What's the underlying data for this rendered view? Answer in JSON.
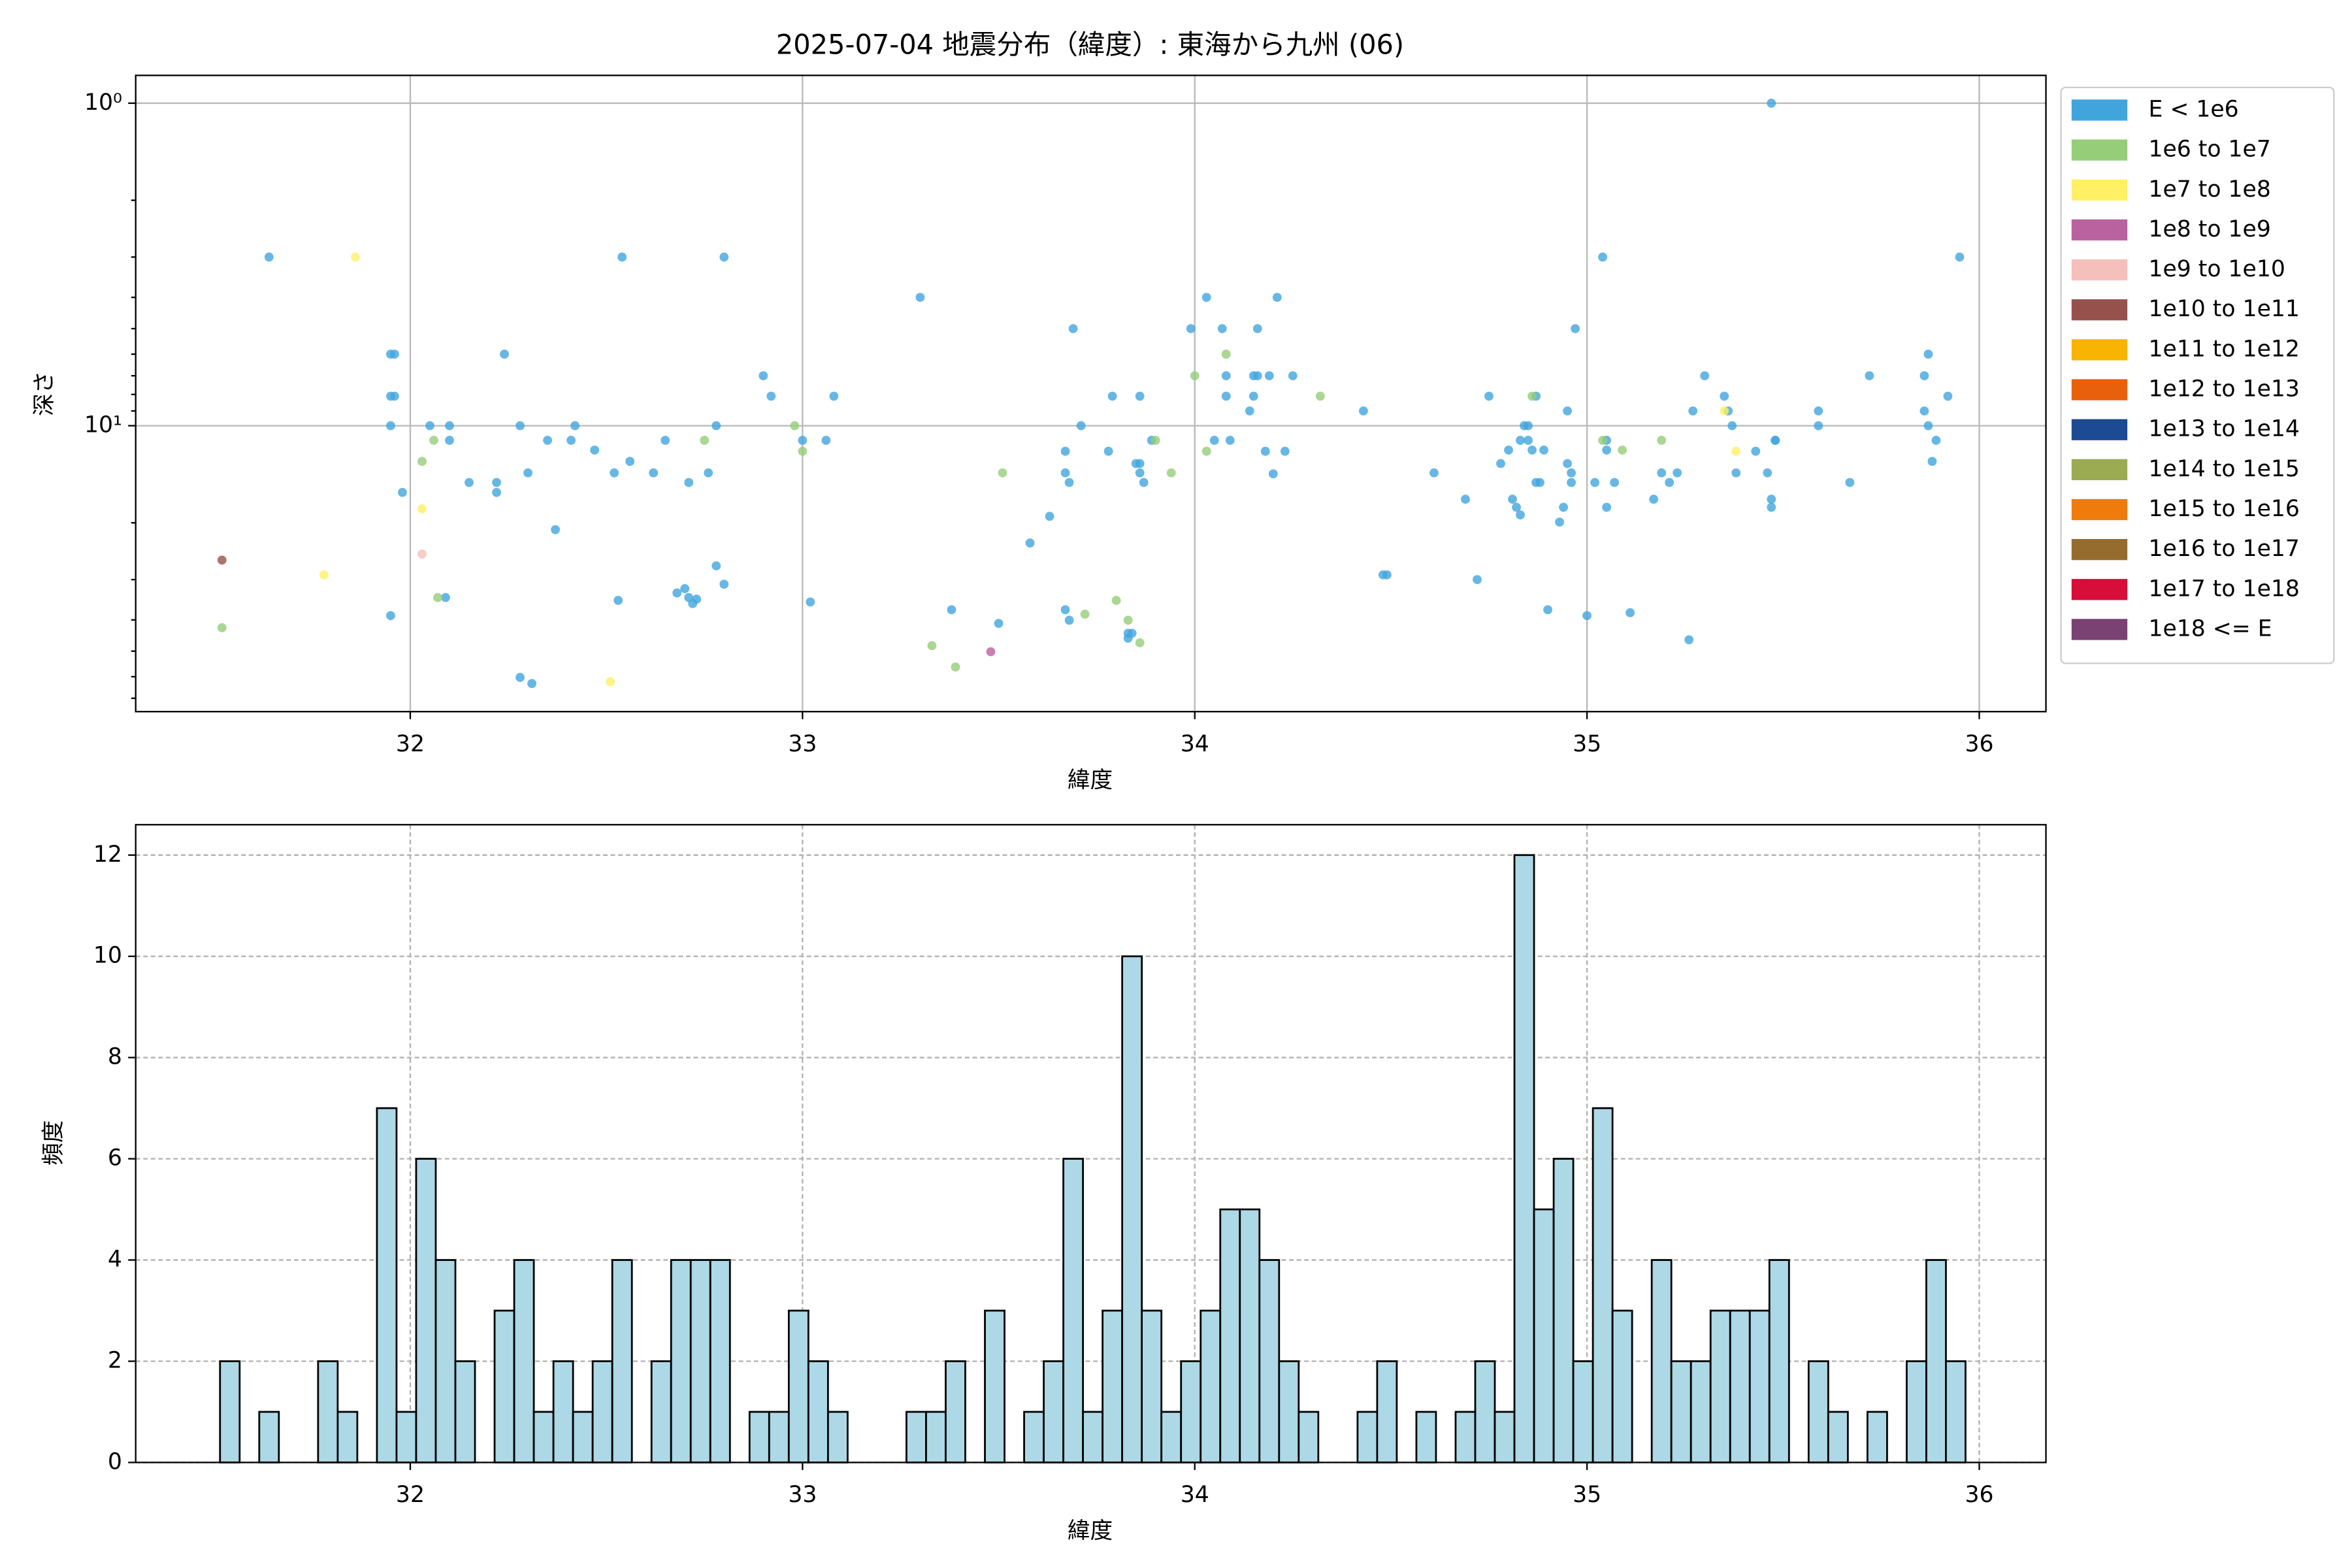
{
  "chart_data": [
    {
      "type": "scatter",
      "title": "2025-07-04 地震分布（緯度）: 東海から九州 (06)",
      "xlabel": "緯度",
      "ylabel": "深さ",
      "xlim": [
        31.3,
        36.17
      ],
      "xticks": [
        32,
        33,
        34,
        35,
        36
      ],
      "yscale": "log",
      "y_inverted": true,
      "ylim": [
        0.82,
        77
      ],
      "yticks": [
        {
          "value": 1,
          "label": "10⁰"
        },
        {
          "value": 10,
          "label": "10¹"
        }
      ],
      "yticks_minor": [
        2,
        3,
        4,
        5,
        6,
        7,
        8,
        9,
        20,
        30,
        40,
        50,
        60,
        70
      ],
      "grid": true,
      "legend": "outside upper right",
      "series": [
        {
          "name": "E < 1e6",
          "color": "#41a5dd",
          "x": [
            31.64,
            31.95,
            31.96,
            31.95,
            31.96,
            31.95,
            31.95,
            31.98,
            32.05,
            32.09,
            32.1,
            32.1,
            32.15,
            32.22,
            32.22,
            32.24,
            32.28,
            32.28,
            32.31,
            32.3,
            32.35,
            32.37,
            32.41,
            32.42,
            32.47,
            32.52,
            32.53,
            32.54,
            32.56,
            32.62,
            32.65,
            32.68,
            32.7,
            32.71,
            32.71,
            32.72,
            32.73,
            32.76,
            32.78,
            32.78,
            32.8,
            32.8,
            32.9,
            32.92,
            33.0,
            33.02,
            33.06,
            33.08,
            33.3,
            33.38,
            33.5,
            33.58,
            33.63,
            33.67,
            33.67,
            33.68,
            33.67,
            33.68,
            33.69,
            33.71,
            33.78,
            33.79,
            33.83,
            33.83,
            33.84,
            33.85,
            33.86,
            33.86,
            33.86,
            33.87,
            33.89,
            33.99,
            34.03,
            34.05,
            34.07,
            34.08,
            34.08,
            34.09,
            34.14,
            34.15,
            34.15,
            34.16,
            34.16,
            34.18,
            34.19,
            34.2,
            34.21,
            34.23,
            34.25,
            34.43,
            34.48,
            34.49,
            34.61,
            34.69,
            34.72,
            34.75,
            34.78,
            34.8,
            34.81,
            34.82,
            34.83,
            34.83,
            34.84,
            34.85,
            34.85,
            34.86,
            34.87,
            34.87,
            34.88,
            34.89,
            34.9,
            34.93,
            34.94,
            34.95,
            34.95,
            34.96,
            34.96,
            34.97,
            35.0,
            35.02,
            35.04,
            35.05,
            35.05,
            35.05,
            35.07,
            35.11,
            35.17,
            35.19,
            35.21,
            35.23,
            35.26,
            35.27,
            35.3,
            35.35,
            35.36,
            35.37,
            35.38,
            35.43,
            35.46,
            35.47,
            35.48,
            35.47,
            35.47,
            35.48,
            35.59,
            35.59,
            35.67,
            35.72,
            35.86,
            35.86,
            35.87,
            35.87,
            35.88,
            35.89,
            35.92,
            35.95
          ],
          "y": [
            3.0,
            6.0,
            6.0,
            8.1,
            8.1,
            10,
            38.8,
            16.1,
            10,
            34.1,
            10,
            11.1,
            15,
            15,
            16.1,
            6.0,
            10,
            60.3,
            63,
            14,
            11.1,
            21,
            11.1,
            10,
            11.9,
            14,
            34.8,
            3.0,
            12.9,
            14,
            11.1,
            33,
            32,
            15,
            34.1,
            35.6,
            34.5,
            14,
            27.2,
            10,
            31,
            3.0,
            7.0,
            8.1,
            11.1,
            35.2,
            11.1,
            8.1,
            4.0,
            37.2,
            41,
            23.1,
            19.1,
            12,
            14,
            15,
            37.2,
            40.1,
            5.0,
            10,
            12,
            8.1,
            45.6,
            44,
            44,
            13.1,
            8.1,
            13.1,
            14,
            15,
            11.1,
            5.0,
            4.0,
            11.1,
            5.0,
            7.0,
            8.1,
            11.1,
            9.0,
            7.0,
            8.1,
            7.0,
            5.0,
            12,
            7.0,
            14.1,
            4.0,
            12,
            7.0,
            9.0,
            29,
            29,
            14,
            16.9,
            30,
            8.1,
            13.1,
            11.9,
            16.9,
            17.9,
            18.9,
            11.1,
            10,
            11.1,
            10,
            11.9,
            15,
            8.1,
            15,
            11.9,
            37.2,
            19.9,
            17.9,
            9.0,
            13.1,
            14,
            15,
            5.0,
            38.8,
            15,
            3.0,
            11.1,
            11.9,
            17.9,
            15,
            38,
            16.9,
            14,
            15,
            14,
            46.1,
            9.0,
            7.0,
            8.1,
            9.0,
            10,
            14,
            12,
            14,
            1.0,
            11.1,
            16.9,
            17.9,
            11.1,
            9.0,
            10,
            15,
            7.0,
            7.0,
            9.0,
            6.0,
            10,
            12.9,
            11.1,
            8.1,
            3.0
          ]
        },
        {
          "name": "1e6 to 1e7",
          "color": "#95cd78",
          "x": [
            31.52,
            32.03,
            32.06,
            32.07,
            32.75,
            32.98,
            33.0,
            33.33,
            33.39,
            33.51,
            33.72,
            33.8,
            33.83,
            33.86,
            33.9,
            33.94,
            34.0,
            34.03,
            34.08,
            34.32,
            34.86,
            35.04,
            35.09,
            35.19
          ],
          "y": [
            42.3,
            12.9,
            11.1,
            34.1,
            11.1,
            10,
            12,
            48.1,
            56,
            14,
            38.4,
            34.8,
            40.1,
            47.1,
            11.1,
            14,
            7.0,
            12,
            6.0,
            8.1,
            8.1,
            11.1,
            11.9,
            11.1
          ]
        },
        {
          "name": "1e7 to 1e8",
          "color": "#fff065",
          "x": [
            31.78,
            31.86,
            32.03,
            32.51,
            35.35,
            35.38
          ],
          "y": [
            29,
            3.0,
            18.1,
            62.2,
            9.0,
            12
          ]
        },
        {
          "name": "1e8 to 1e9",
          "color": "#b9629f",
          "x": [
            33.48
          ],
          "y": [
            50.2
          ]
        },
        {
          "name": "1e9 to 1e10",
          "color": "#f5bfbb",
          "x": [
            32.03
          ],
          "y": [
            25
          ]
        },
        {
          "name": "1e10 to 1e11",
          "color": "#96514c",
          "x": [
            31.52
          ],
          "y": [
            26.1
          ]
        },
        {
          "name": "1e11 to 1e12",
          "color": "#f8b400",
          "x": [],
          "y": []
        },
        {
          "name": "1e12 to 1e13",
          "color": "#e8600c",
          "x": [],
          "y": []
        },
        {
          "name": "1e13 to 1e14",
          "color": "#1c4a93",
          "x": [],
          "y": []
        },
        {
          "name": "1e14 to 1e15",
          "color": "#9bab52",
          "x": [],
          "y": []
        },
        {
          "name": "1e15 to 1e16",
          "color": "#f07b0d",
          "x": [],
          "y": []
        },
        {
          "name": "1e16 to 1e17",
          "color": "#956c2d",
          "x": [],
          "y": []
        },
        {
          "name": "1e17 to 1e18",
          "color": "#d70d3a",
          "x": [],
          "y": []
        },
        {
          "name": "1e18 <= E",
          "color": "#7a4173",
          "x": [],
          "y": []
        }
      ]
    },
    {
      "type": "histogram",
      "xlabel": "緯度",
      "ylabel": "頻度",
      "xlim": [
        31.3,
        36.17
      ],
      "xticks": [
        32,
        33,
        34,
        35,
        36
      ],
      "ylim": [
        0,
        12.6
      ],
      "yticks": [
        0,
        2,
        4,
        6,
        8,
        10,
        12
      ],
      "grid": "dashed",
      "color": "#add8e6",
      "edgecolor": "#000000",
      "bins": [
        31.515,
        31.565,
        31.615,
        31.665,
        31.715,
        31.765,
        31.815,
        31.865,
        31.915,
        31.965,
        32.015,
        32.065,
        32.115,
        32.165,
        32.215,
        32.265,
        32.315,
        32.365,
        32.415,
        32.465,
        32.515,
        32.565,
        32.615,
        32.665,
        32.715,
        32.765,
        32.815,
        32.865,
        32.915,
        32.965,
        33.015,
        33.065,
        33.115,
        33.165,
        33.215,
        33.265,
        33.315,
        33.365,
        33.415,
        33.465,
        33.515,
        33.565,
        33.615,
        33.665,
        33.715,
        33.765,
        33.815,
        33.865,
        33.915,
        33.965,
        34.015,
        34.065,
        34.115,
        34.165,
        34.215,
        34.265,
        34.315,
        34.365,
        34.415,
        34.465,
        34.515,
        34.565,
        34.615,
        34.665,
        34.715,
        34.765,
        34.815,
        34.865,
        34.915,
        34.965,
        35.015,
        35.065,
        35.115,
        35.165,
        35.215,
        35.265,
        35.315,
        35.365,
        35.415,
        35.465,
        35.515,
        35.565,
        35.615,
        35.665,
        35.715,
        35.765,
        35.815,
        35.865,
        35.915,
        35.965
      ],
      "values": [
        2,
        0,
        1,
        0,
        0,
        2,
        1,
        0,
        7,
        1,
        6,
        4,
        2,
        0,
        3,
        4,
        1,
        2,
        1,
        2,
        4,
        0,
        2,
        4,
        4,
        4,
        0,
        1,
        1,
        3,
        2,
        1,
        0,
        0,
        0,
        1,
        1,
        2,
        0,
        3,
        0,
        1,
        2,
        6,
        1,
        3,
        10,
        3,
        1,
        2,
        3,
        5,
        5,
        4,
        2,
        1,
        0,
        0,
        1,
        2,
        0,
        1,
        0,
        1,
        2,
        1,
        12,
        5,
        6,
        2,
        7,
        3,
        0,
        4,
        2,
        2,
        3,
        3,
        3,
        4,
        0,
        2,
        1,
        0,
        1,
        0,
        2,
        4,
        2
      ]
    }
  ]
}
